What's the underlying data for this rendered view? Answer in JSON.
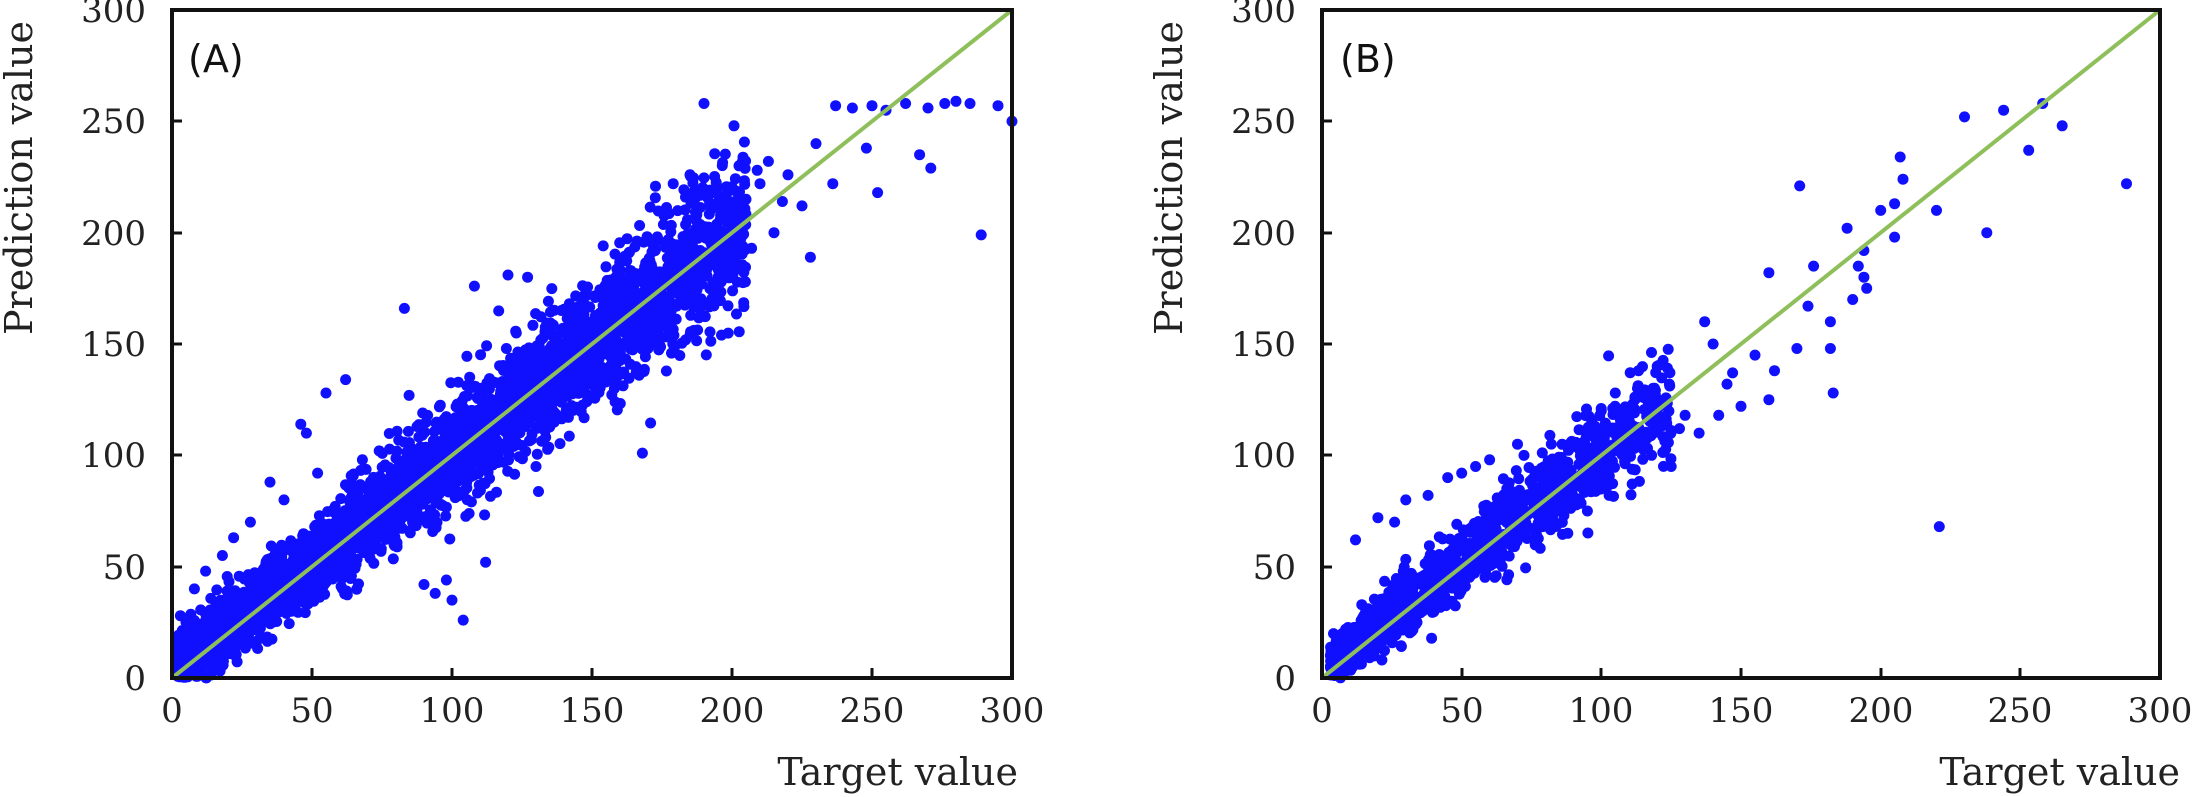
{
  "chart_data": [
    {
      "type": "scatter",
      "panel_label": "(A)",
      "title": "",
      "xlabel": "Target value",
      "ylabel": "Prediction value",
      "xlim": [
        0,
        300
      ],
      "ylim": [
        0,
        300
      ],
      "xticks": [
        "0",
        "50",
        "100",
        "150",
        "200",
        "250",
        "300"
      ],
      "yticks": [
        "0",
        "50",
        "100",
        "150",
        "200",
        "250",
        "300"
      ],
      "reference_line": {
        "name": "y = x",
        "color": "#8fbf5a"
      },
      "point_color": "#1010ff",
      "dense_cloud": {
        "count": 3800,
        "x_range": [
          2,
          205
        ],
        "slope": 0.98,
        "intercept": 3,
        "spread": 6,
        "spread_per_unit": 0.06
      },
      "points": [
        [
          190,
          258
        ],
        [
          237,
          257
        ],
        [
          243,
          256
        ],
        [
          250,
          257
        ],
        [
          255,
          255
        ],
        [
          262,
          258
        ],
        [
          270,
          256
        ],
        [
          276,
          258
        ],
        [
          280,
          259
        ],
        [
          285,
          258
        ],
        [
          295,
          257
        ],
        [
          300,
          250
        ],
        [
          248,
          238
        ],
        [
          267,
          235
        ],
        [
          271,
          229
        ],
        [
          230,
          240
        ],
        [
          252,
          218
        ],
        [
          236,
          222
        ],
        [
          218,
          214
        ],
        [
          225,
          212
        ],
        [
          213,
          232
        ],
        [
          210,
          222
        ],
        [
          205,
          215
        ],
        [
          200,
          209
        ],
        [
          209,
          228
        ],
        [
          220,
          226
        ],
        [
          185,
          226
        ],
        [
          179,
          222
        ],
        [
          186,
          218
        ],
        [
          192,
          213
        ],
        [
          203,
          206
        ],
        [
          198,
          200
        ],
        [
          228,
          189
        ],
        [
          207,
          193
        ],
        [
          215,
          200
        ],
        [
          289,
          199
        ],
        [
          83,
          166
        ],
        [
          108,
          176
        ],
        [
          120,
          181
        ],
        [
          127,
          180
        ],
        [
          62,
          134
        ],
        [
          55,
          128
        ],
        [
          46,
          114
        ],
        [
          48,
          110
        ],
        [
          168,
          101
        ],
        [
          122,
          104
        ],
        [
          130,
          95
        ],
        [
          158,
          130
        ],
        [
          170,
          148
        ],
        [
          165,
          160
        ],
        [
          100,
          35
        ],
        [
          104,
          26
        ],
        [
          90,
          42
        ],
        [
          94,
          38
        ],
        [
          112,
          52
        ],
        [
          98,
          44
        ],
        [
          68,
          98
        ],
        [
          74,
          102
        ],
        [
          52,
          92
        ],
        [
          40,
          80
        ],
        [
          28,
          70
        ],
        [
          18,
          55
        ],
        [
          22,
          63
        ],
        [
          35,
          88
        ],
        [
          5,
          25
        ],
        [
          3,
          28
        ],
        [
          10,
          18
        ],
        [
          15,
          12
        ],
        [
          8,
          40
        ],
        [
          12,
          48
        ],
        [
          186,
          170
        ],
        [
          195,
          180
        ]
      ]
    },
    {
      "type": "scatter",
      "panel_label": "(B)",
      "title": "",
      "xlabel": "Target value",
      "ylabel": "Prediction value",
      "xlim": [
        0,
        300
      ],
      "ylim": [
        0,
        300
      ],
      "xticks": [
        "0",
        "50",
        "100",
        "150",
        "200",
        "250",
        "300"
      ],
      "yticks": [
        "0",
        "50",
        "100",
        "150",
        "200",
        "250",
        "300"
      ],
      "reference_line": {
        "name": "y = x",
        "color": "#8fbf5a"
      },
      "point_color": "#1010ff",
      "dense_cloud": {
        "count": 1300,
        "x_range": [
          3,
          125
        ],
        "slope": 0.97,
        "intercept": 4,
        "spread": 5,
        "spread_per_unit": 0.06
      },
      "points": [
        [
          230,
          252
        ],
        [
          244,
          255
        ],
        [
          258,
          258
        ],
        [
          265,
          248
        ],
        [
          253,
          237
        ],
        [
          288,
          222
        ],
        [
          171,
          221
        ],
        [
          207,
          234
        ],
        [
          208,
          224
        ],
        [
          205,
          213
        ],
        [
          200,
          210
        ],
        [
          205,
          198
        ],
        [
          220,
          210
        ],
        [
          238,
          200
        ],
        [
          188,
          202
        ],
        [
          176,
          185
        ],
        [
          194,
          192
        ],
        [
          192,
          185
        ],
        [
          194,
          180
        ],
        [
          195,
          175
        ],
        [
          190,
          170
        ],
        [
          174,
          167
        ],
        [
          182,
          160
        ],
        [
          160,
          182
        ],
        [
          170,
          148
        ],
        [
          182,
          148
        ],
        [
          183,
          128
        ],
        [
          160,
          125
        ],
        [
          150,
          122
        ],
        [
          147,
          137
        ],
        [
          140,
          150
        ],
        [
          137,
          160
        ],
        [
          221,
          68
        ],
        [
          120,
          140
        ],
        [
          115,
          128
        ],
        [
          112,
          125
        ],
        [
          105,
          128
        ],
        [
          100,
          120
        ],
        [
          130,
          118
        ],
        [
          135,
          110
        ],
        [
          142,
          118
        ],
        [
          95,
          75
        ],
        [
          88,
          65
        ],
        [
          80,
          70
        ],
        [
          70,
          105
        ],
        [
          60,
          98
        ],
        [
          55,
          95
        ],
        [
          50,
          92
        ],
        [
          45,
          90
        ],
        [
          38,
          82
        ],
        [
          30,
          80
        ],
        [
          26,
          70
        ],
        [
          20,
          72
        ],
        [
          12,
          62
        ],
        [
          6,
          15
        ],
        [
          4,
          12
        ],
        [
          8,
          18
        ],
        [
          15,
          28
        ],
        [
          125,
          95
        ],
        [
          118,
          100
        ],
        [
          128,
          112
        ],
        [
          162,
          138
        ],
        [
          155,
          145
        ],
        [
          145,
          132
        ]
      ]
    }
  ]
}
